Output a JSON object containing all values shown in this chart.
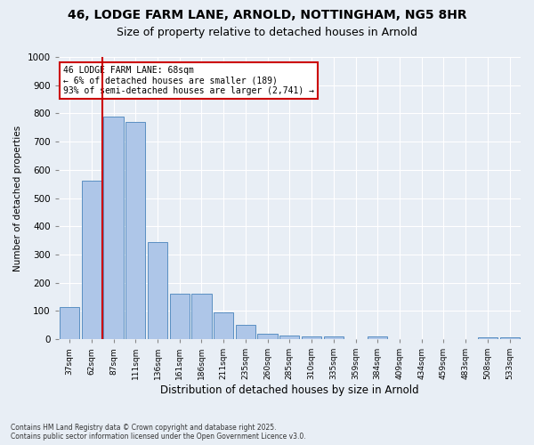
{
  "title_line1": "46, LODGE FARM LANE, ARNOLD, NOTTINGHAM, NG5 8HR",
  "title_line2": "Size of property relative to detached houses in Arnold",
  "xlabel": "Distribution of detached houses by size in Arnold",
  "ylabel": "Number of detached properties",
  "footnote": "Contains HM Land Registry data © Crown copyright and database right 2025.\nContains public sector information licensed under the Open Government Licence v3.0.",
  "categories": [
    "37sqm",
    "62sqm",
    "87sqm",
    "111sqm",
    "136sqm",
    "161sqm",
    "186sqm",
    "211sqm",
    "235sqm",
    "260sqm",
    "285sqm",
    "310sqm",
    "335sqm",
    "359sqm",
    "384sqm",
    "409sqm",
    "434sqm",
    "459sqm",
    "483sqm",
    "508sqm",
    "533sqm"
  ],
  "values": [
    113,
    560,
    790,
    770,
    345,
    160,
    160,
    95,
    50,
    20,
    13,
    10,
    10,
    0,
    10,
    0,
    0,
    0,
    0,
    5,
    5
  ],
  "bar_color": "#aec6e8",
  "bar_edge_color": "#5a8fc2",
  "property_line_x": 1.5,
  "annotation_title": "46 LODGE FARM LANE: 68sqm",
  "annotation_line2": "← 6% of detached houses are smaller (189)",
  "annotation_line3": "93% of semi-detached houses are larger (2,741) →",
  "annotation_box_color": "#cc0000",
  "vline_color": "#cc0000",
  "ylim": [
    0,
    1000
  ],
  "yticks": [
    0,
    100,
    200,
    300,
    400,
    500,
    600,
    700,
    800,
    900,
    1000
  ],
  "bg_color": "#e8eef5",
  "plot_bg_color": "#e8eef5",
  "grid_color": "#ffffff",
  "title_fontsize": 10,
  "subtitle_fontsize": 9
}
